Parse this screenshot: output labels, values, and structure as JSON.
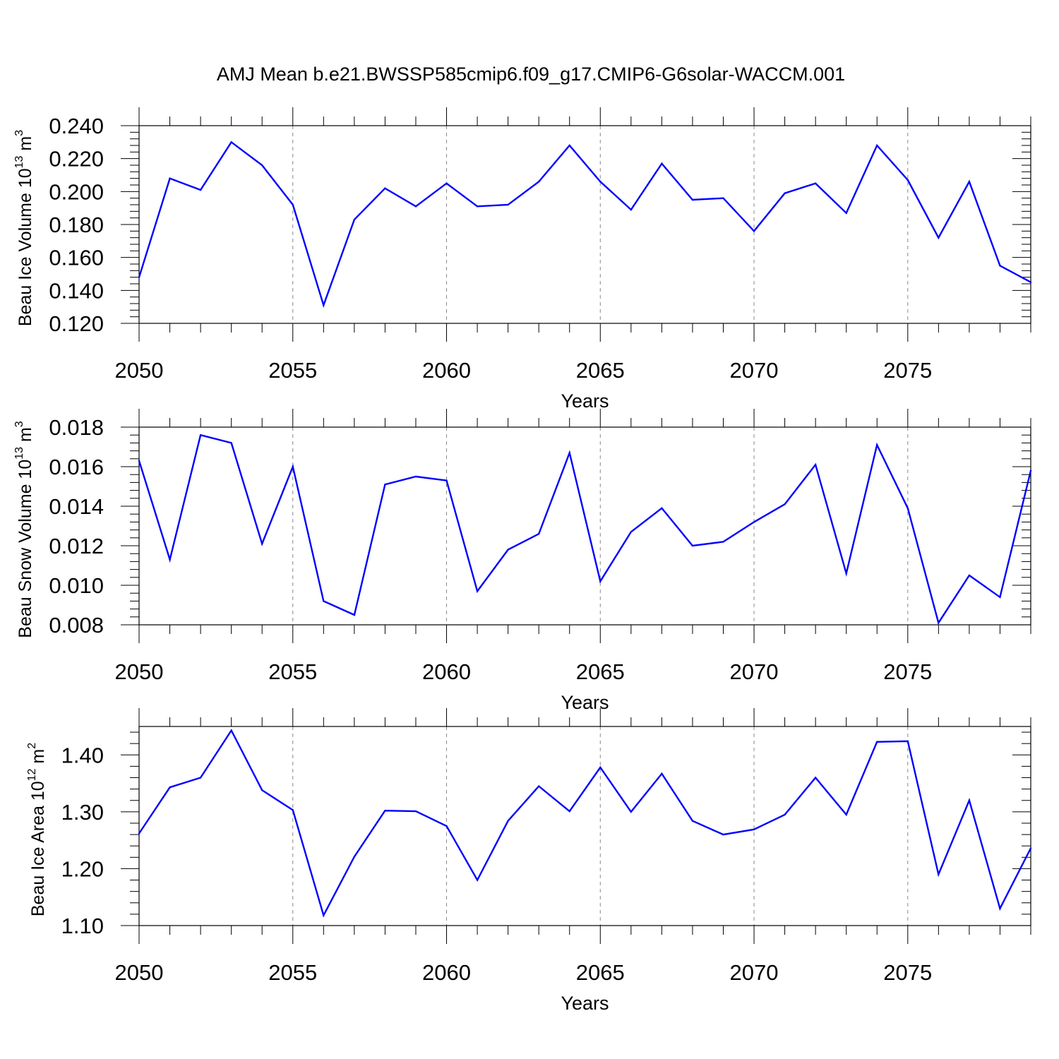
{
  "figure": {
    "title": "AMJ Mean b.e21.BWSSP585cmip6.f09_g17.CMIP6-G6solar-WACCM.001"
  },
  "chart_data": [
    {
      "type": "line",
      "ylabel": "Beau Ice Volume 10",
      "ylabel_exp": "13",
      "ylabel_unit": " m",
      "ylabel_unit_exp": "3",
      "xlabel": "Years",
      "xlim": [
        2050,
        2079
      ],
      "ylim": [
        0.12,
        0.24
      ],
      "yticks": [
        0.12,
        0.14,
        0.16,
        0.18,
        0.2,
        0.22,
        0.24
      ],
      "ytick_labels": [
        "0.120",
        "0.140",
        "0.160",
        "0.180",
        "0.200",
        "0.220",
        "0.240"
      ],
      "xticks": [
        2050,
        2055,
        2060,
        2065,
        2070,
        2075
      ],
      "xtick_labels": [
        "2050",
        "2055",
        "2060",
        "2065",
        "2070",
        "2075"
      ],
      "line_color": "#0000ff",
      "x": [
        2050,
        2051,
        2052,
        2053,
        2054,
        2055,
        2056,
        2057,
        2058,
        2059,
        2060,
        2061,
        2062,
        2063,
        2064,
        2065,
        2066,
        2067,
        2068,
        2069,
        2070,
        2071,
        2072,
        2073,
        2074,
        2075,
        2076,
        2077,
        2078,
        2079
      ],
      "values": [
        0.148,
        0.208,
        0.201,
        0.23,
        0.216,
        0.192,
        0.131,
        0.183,
        0.202,
        0.191,
        0.205,
        0.191,
        0.192,
        0.206,
        0.228,
        0.206,
        0.189,
        0.217,
        0.195,
        0.196,
        0.176,
        0.199,
        0.205,
        0.187,
        0.228,
        0.207,
        0.172,
        0.206,
        0.155,
        0.145
      ]
    },
    {
      "type": "line",
      "ylabel": "Beau Snow Volume 10",
      "ylabel_exp": "13",
      "ylabel_unit": " m",
      "ylabel_unit_exp": "3",
      "xlabel": "Years",
      "xlim": [
        2050,
        2079
      ],
      "ylim": [
        0.008,
        0.018
      ],
      "yticks": [
        0.008,
        0.01,
        0.012,
        0.014,
        0.016,
        0.018
      ],
      "ytick_labels": [
        "0.008",
        "0.010",
        "0.012",
        "0.014",
        "0.016",
        "0.018"
      ],
      "xticks": [
        2050,
        2055,
        2060,
        2065,
        2070,
        2075
      ],
      "xtick_labels": [
        "2050",
        "2055",
        "2060",
        "2065",
        "2070",
        "2075"
      ],
      "line_color": "#0000ff",
      "x": [
        2050,
        2051,
        2052,
        2053,
        2054,
        2055,
        2056,
        2057,
        2058,
        2059,
        2060,
        2061,
        2062,
        2063,
        2064,
        2065,
        2066,
        2067,
        2068,
        2069,
        2070,
        2071,
        2072,
        2073,
        2074,
        2075,
        2076,
        2077,
        2078,
        2079
      ],
      "values": [
        0.0163,
        0.0113,
        0.0176,
        0.0172,
        0.0121,
        0.016,
        0.0092,
        0.0085,
        0.0151,
        0.0155,
        0.0153,
        0.0097,
        0.0118,
        0.0126,
        0.0167,
        0.0102,
        0.0127,
        0.0139,
        0.012,
        0.0122,
        0.0132,
        0.0141,
        0.0161,
        0.0106,
        0.0171,
        0.0139,
        0.0081,
        0.0105,
        0.0094,
        0.0158
      ]
    },
    {
      "type": "line",
      "ylabel": "Beau Ice Area 10",
      "ylabel_exp": "12",
      "ylabel_unit": " m",
      "ylabel_unit_exp": "2",
      "xlabel": "Years",
      "xlim": [
        2050,
        2079
      ],
      "ylim": [
        1.1,
        1.45
      ],
      "yticks": [
        1.1,
        1.2,
        1.3,
        1.4
      ],
      "ytick_labels": [
        "1.10",
        "1.20",
        "1.30",
        "1.40"
      ],
      "xticks": [
        2050,
        2055,
        2060,
        2065,
        2070,
        2075
      ],
      "xtick_labels": [
        "2050",
        "2055",
        "2060",
        "2065",
        "2070",
        "2075"
      ],
      "line_color": "#0000ff",
      "x": [
        2050,
        2051,
        2052,
        2053,
        2054,
        2055,
        2056,
        2057,
        2058,
        2059,
        2060,
        2061,
        2062,
        2063,
        2064,
        2065,
        2066,
        2067,
        2068,
        2069,
        2070,
        2071,
        2072,
        2073,
        2074,
        2075,
        2076,
        2077,
        2078,
        2079
      ],
      "values": [
        1.262,
        1.343,
        1.36,
        1.443,
        1.338,
        1.303,
        1.118,
        1.221,
        1.302,
        1.301,
        1.275,
        1.18,
        1.284,
        1.345,
        1.301,
        1.378,
        1.3,
        1.367,
        1.284,
        1.26,
        1.269,
        1.295,
        1.36,
        1.295,
        1.423,
        1.424,
        1.19,
        1.32,
        1.13,
        1.236
      ]
    }
  ]
}
